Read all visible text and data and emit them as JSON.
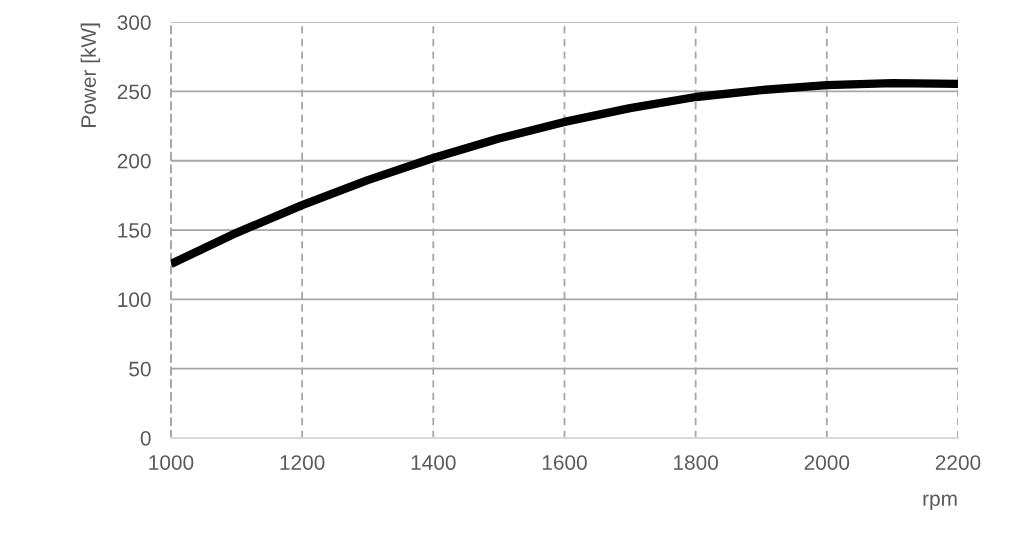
{
  "chart_data": {
    "type": "line",
    "xlabel": "rpm",
    "ylabel": "Power [kW]",
    "x": [
      1000,
      1100,
      1200,
      1300,
      1400,
      1500,
      1600,
      1700,
      1800,
      1900,
      2000,
      2100,
      2200
    ],
    "series": [
      {
        "color": "#000000",
        "values": [
          125.5,
          148,
          168,
          186,
          202,
          216,
          228,
          238,
          246,
          251,
          254.5,
          256,
          255.5
        ]
      }
    ],
    "xlim": [
      1000,
      2200
    ],
    "xticks": [
      1000,
      1200,
      1400,
      1600,
      1800,
      2000,
      2200
    ],
    "ylim": [
      0,
      300
    ],
    "yticks": [
      0,
      50,
      100,
      150,
      200,
      250,
      300
    ],
    "grid": true,
    "line_style": "solid",
    "marker": "none"
  }
}
